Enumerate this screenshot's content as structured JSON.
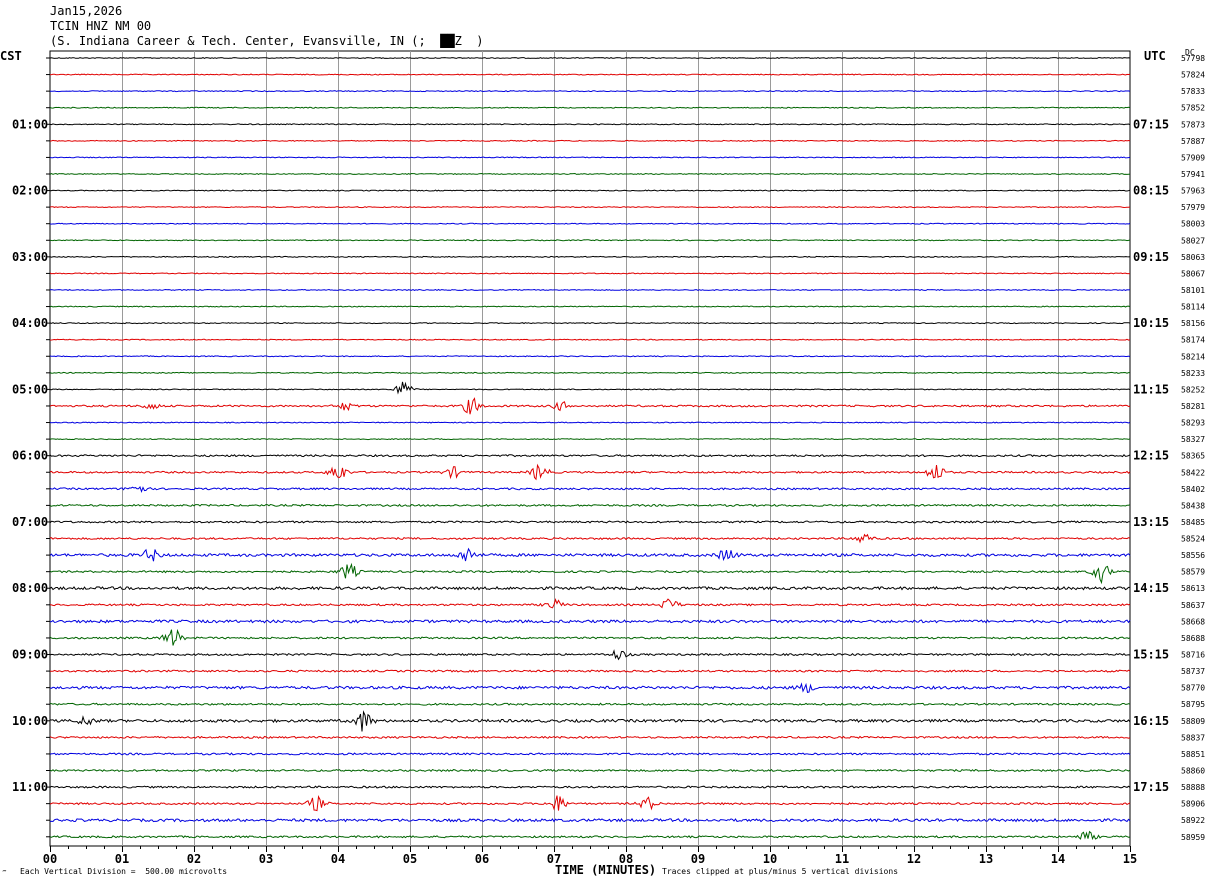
{
  "header": {
    "date": "Jan15,2026",
    "station": "TCIN HNZ NM 00",
    "location": "(S. Indiana Career & Tech. Center, Evansville, IN (;  ██Z  )"
  },
  "tz_left": "CST",
  "tz_right": "UTC",
  "dc_label": "DC",
  "footer": {
    "left": "Each Vertical Division =  500.00 microvolts",
    "right": "Traces clipped at plus/minus 5 vertical divisions",
    "mark": "‴"
  },
  "chart_data": {
    "type": "line",
    "title": "",
    "xlabel": "TIME (MINUTES)",
    "xlim": [
      0,
      15
    ],
    "x_ticks": [
      "00",
      "01",
      "02",
      "03",
      "04",
      "05",
      "06",
      "07",
      "08",
      "09",
      "10",
      "11",
      "12",
      "13",
      "14",
      "15"
    ],
    "trace_colors": [
      "#000000",
      "#e00000",
      "#0000e0",
      "#006400"
    ],
    "left_hour_labels": [
      "01:00",
      "02:00",
      "03:00",
      "04:00",
      "05:00",
      "06:00",
      "07:00",
      "08:00",
      "09:00",
      "10:00",
      "11:00"
    ],
    "right_hour_labels": [
      "07:15",
      "08:15",
      "09:15",
      "10:15",
      "11:15",
      "12:15",
      "13:15",
      "14:15",
      "15:15",
      "16:15",
      "17:15"
    ],
    "dc_values": [
      "57798",
      "57824",
      "57833",
      "57852",
      "57873",
      "57887",
      "57909",
      "57941",
      "57963",
      "57979",
      "58003",
      "58027",
      "58063",
      "58067",
      "58101",
      "58114",
      "58156",
      "58174",
      "58214",
      "58233",
      "58252",
      "58281",
      "58293",
      "58327",
      "58365",
      "58422",
      "58402",
      "58438",
      "58485",
      "58524",
      "58556",
      "58579",
      "58613",
      "58637",
      "58668",
      "58688",
      "58716",
      "58737",
      "58770",
      "58795",
      "58809",
      "58837",
      "58851",
      "58860",
      "58888",
      "58906",
      "58922",
      "58959"
    ],
    "trace_amplitudes": [
      1,
      1,
      1,
      1,
      1,
      1,
      1,
      1,
      1,
      1,
      1,
      1,
      1,
      1,
      1,
      1,
      1,
      1,
      1,
      1,
      1,
      2,
      1,
      1,
      2,
      2,
      2,
      2,
      2,
      2,
      3,
      2,
      3,
      2,
      3,
      2,
      2,
      2,
      3,
      2,
      3,
      2,
      2,
      2,
      2,
      2,
      3,
      2
    ],
    "events": [
      {
        "trace": 20,
        "minute": 4.9,
        "amp": 8
      },
      {
        "trace": 21,
        "minute": 1.4,
        "amp": 3
      },
      {
        "trace": 21,
        "minute": 4.1,
        "amp": 4
      },
      {
        "trace": 21,
        "minute": 5.85,
        "amp": 8
      },
      {
        "trace": 21,
        "minute": 7.1,
        "amp": 4
      },
      {
        "trace": 25,
        "minute": 4.0,
        "amp": 9
      },
      {
        "trace": 25,
        "minute": 5.6,
        "amp": 5
      },
      {
        "trace": 25,
        "minute": 6.8,
        "amp": 8
      },
      {
        "trace": 25,
        "minute": 12.3,
        "amp": 9
      },
      {
        "trace": 26,
        "minute": 1.2,
        "amp": 5
      },
      {
        "trace": 29,
        "minute": 11.3,
        "amp": 5
      },
      {
        "trace": 30,
        "minute": 1.4,
        "amp": 6
      },
      {
        "trace": 30,
        "minute": 5.8,
        "amp": 7
      },
      {
        "trace": 30,
        "minute": 9.4,
        "amp": 6
      },
      {
        "trace": 31,
        "minute": 4.15,
        "amp": 8
      },
      {
        "trace": 31,
        "minute": 14.6,
        "amp": 10
      },
      {
        "trace": 33,
        "minute": 7.0,
        "amp": 5
      },
      {
        "trace": 33,
        "minute": 8.6,
        "amp": 6
      },
      {
        "trace": 35,
        "minute": 1.7,
        "amp": 10
      },
      {
        "trace": 36,
        "minute": 7.9,
        "amp": 5
      },
      {
        "trace": 38,
        "minute": 10.5,
        "amp": 4
      },
      {
        "trace": 40,
        "minute": 0.5,
        "amp": 4
      },
      {
        "trace": 40,
        "minute": 4.35,
        "amp": 10
      },
      {
        "trace": 45,
        "minute": 3.7,
        "amp": 7
      },
      {
        "trace": 45,
        "minute": 7.05,
        "amp": 8
      },
      {
        "trace": 45,
        "minute": 8.3,
        "amp": 6
      },
      {
        "trace": 47,
        "minute": 14.4,
        "amp": 5
      }
    ]
  }
}
